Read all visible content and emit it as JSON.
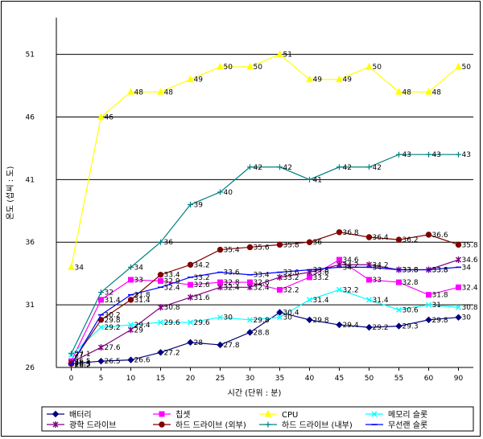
{
  "chart_data": {
    "type": "line",
    "title": "",
    "xlabel": "시간 (단위 : 분)",
    "ylabel": "온도 (섭씨 : 도)",
    "ylim": [
      26,
      52
    ],
    "yticks": [
      26,
      31,
      36,
      41,
      46,
      51
    ],
    "grid": "horizontal",
    "legend_position": "bottom",
    "categories": [
      "0",
      "5",
      "10",
      "15",
      "20",
      "25",
      "30",
      "35",
      "40",
      "45",
      "50",
      "55",
      "60",
      "90"
    ],
    "series": [
      {
        "name": "배터리",
        "color": "#000080",
        "marker": "diamond",
        "values": [
          26.3,
          26.5,
          26.6,
          27.2,
          28,
          27.8,
          28.8,
          30.4,
          29.8,
          29.4,
          29.2,
          29.3,
          29.8,
          30
        ]
      },
      {
        "name": "칩셋",
        "color": "#ff00ff",
        "marker": "square",
        "values": [
          26.5,
          31.4,
          33,
          32.9,
          32.6,
          32.8,
          32.8,
          32.2,
          33.2,
          34.6,
          33,
          32.8,
          31.8,
          32.4
        ]
      },
      {
        "name": "CPU",
        "color": "#ffff00",
        "marker": "triangle",
        "values": [
          34,
          46,
          48,
          48,
          49,
          50,
          50,
          51,
          49,
          49,
          50,
          48,
          48,
          50
        ]
      },
      {
        "name": "메모리 슬롯",
        "color": "#00ffff",
        "marker": "x",
        "values": [
          27,
          29.2,
          29.4,
          29.6,
          29.6,
          30,
          29.8,
          30,
          31.4,
          32.2,
          31.4,
          30.6,
          31,
          30.8
        ]
      },
      {
        "name": "광학 드라이브",
        "color": "#800080",
        "marker": "star",
        "values": [
          26.4,
          27.6,
          29,
          30.8,
          31.6,
          32.4,
          32.4,
          33.2,
          33.6,
          34.2,
          34.2,
          33.8,
          33.8,
          34.6
        ]
      },
      {
        "name": "하드 드라이브 (외부)",
        "color": "#800000",
        "marker": "circle",
        "values": [
          26.3,
          29.8,
          31.4,
          33.4,
          34.2,
          35.4,
          35.6,
          35.8,
          36,
          36.8,
          36.4,
          36.2,
          36.6,
          35.8
        ]
      },
      {
        "name": "하드 드라이브 (내부)",
        "color": "#008080",
        "marker": "plus",
        "values": [
          27.1,
          32,
          34,
          36,
          39,
          40,
          42,
          42,
          41,
          42,
          42,
          43,
          43,
          43
        ]
      },
      {
        "name": "무선랜 슬롯",
        "color": "#0000ff",
        "marker": "dash",
        "values": [
          26.2,
          30.2,
          31.8,
          32.4,
          33.2,
          33.6,
          33.4,
          33.6,
          33.8,
          34,
          34,
          33.8,
          33.8,
          34
        ]
      }
    ]
  }
}
